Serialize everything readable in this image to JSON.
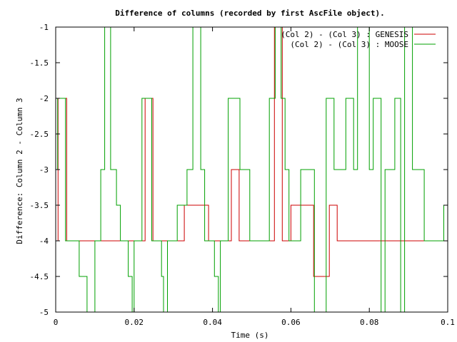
{
  "chart_data": {
    "type": "line",
    "title": "Difference of columns (recorded by first AscFile object).",
    "xlabel": "Time (s)",
    "ylabel": "Difference: Column 2 - Column 3",
    "xlim": [
      0,
      0.1
    ],
    "ylim": [
      -5,
      -1
    ],
    "xticks": [
      0,
      0.02,
      0.04,
      0.06,
      0.08,
      0.1
    ],
    "xtick_labels": [
      "0",
      "0.02",
      "0.04",
      "0.06",
      "0.08",
      "0.1"
    ],
    "yticks": [
      -1,
      -1.5,
      -2,
      -2.5,
      -3,
      -3.5,
      -4,
      -4.5,
      -5
    ],
    "ytick_labels": [
      "-1",
      "-1.5",
      "-2",
      "-2.5",
      "-3",
      "-3.5",
      "-4",
      "-4.5",
      "-5"
    ],
    "grid": false,
    "legend_position": "top-right",
    "step": true,
    "series": [
      {
        "name": "(Col 2) - (Col 3) : GENESIS",
        "color": "#cc0000",
        "x": [
          0,
          0.0004,
          0.0006,
          0.0025,
          0.0028,
          0.0225,
          0.0228,
          0.0245,
          0.0248,
          0.0325,
          0.0328,
          0.0388,
          0.039,
          0.0445,
          0.0448,
          0.0465,
          0.0468,
          0.0555,
          0.0558,
          0.0575,
          0.0578,
          0.0598,
          0.06,
          0.0655,
          0.0658,
          0.0695,
          0.0698,
          0.0715,
          0.0718,
          0.1
        ],
        "y": [
          -4,
          -4,
          -2,
          -2,
          -4,
          -4,
          -2,
          -2,
          -4,
          -4,
          -3.5,
          -3.5,
          -4,
          -4,
          -3,
          -3,
          -4,
          -4,
          -1,
          -1,
          -4,
          -4,
          -3.5,
          -3.5,
          -4.5,
          -4.5,
          -3.5,
          -3.5,
          -4,
          -4
        ]
      },
      {
        "name": "(Col 2) - (Col 3) : MOOSE",
        "color": "#00a000",
        "x": [
          0,
          0.0005,
          0.001,
          0.0025,
          0.003,
          0.0055,
          0.006,
          0.008,
          0.0095,
          0.01,
          0.011,
          0.0115,
          0.0125,
          0.013,
          0.014,
          0.0145,
          0.0155,
          0.0165,
          0.0175,
          0.0185,
          0.0195,
          0.02,
          0.0215,
          0.022,
          0.0225,
          0.0245,
          0.0255,
          0.027,
          0.0275,
          0.0285,
          0.03,
          0.031,
          0.0325,
          0.0335,
          0.035,
          0.0355,
          0.037,
          0.038,
          0.0395,
          0.0405,
          0.0415,
          0.042,
          0.043,
          0.044,
          0.045,
          0.047,
          0.048,
          0.0495,
          0.0515,
          0.053,
          0.0545,
          0.0555,
          0.056,
          0.057,
          0.0575,
          0.0585,
          0.0595,
          0.0605,
          0.0625,
          0.064,
          0.065,
          0.066,
          0.068,
          0.069,
          0.07,
          0.071,
          0.073,
          0.074,
          0.075,
          0.076,
          0.077,
          0.079,
          0.08,
          0.081,
          0.0825,
          0.083,
          0.084,
          0.085,
          0.0865,
          0.088,
          0.089,
          0.09,
          0.091,
          0.0935,
          0.094,
          0.098,
          0.099,
          0.1
        ],
        "y": [
          -3,
          -2,
          -2,
          -4,
          -4,
          -4,
          -4.5,
          -5,
          -5,
          -4,
          -4,
          -3,
          -1,
          -1,
          -3,
          -3,
          -3.5,
          -4,
          -4,
          -4.5,
          -5,
          -4,
          -4,
          -2,
          -2,
          -4,
          -4,
          -4.5,
          -5,
          -4,
          -4,
          -3.5,
          -3.5,
          -3,
          -1,
          -1,
          -3,
          -4,
          -4,
          -4.5,
          -5,
          -4,
          -4,
          -2,
          -2,
          -3,
          -3,
          -4,
          -4,
          -4,
          -2,
          -2,
          -1,
          -1,
          -2,
          -3,
          -4,
          -4,
          -3,
          -3,
          -3,
          -5,
          -5,
          -2,
          -2,
          -3,
          -3,
          -2,
          -2,
          -3,
          -1,
          -1,
          -3,
          -2,
          -2,
          -5,
          -3,
          -3,
          -2,
          -5,
          -1,
          -1,
          -3,
          -3,
          -4,
          -4,
          -3.5,
          -3.5
        ]
      }
    ]
  }
}
